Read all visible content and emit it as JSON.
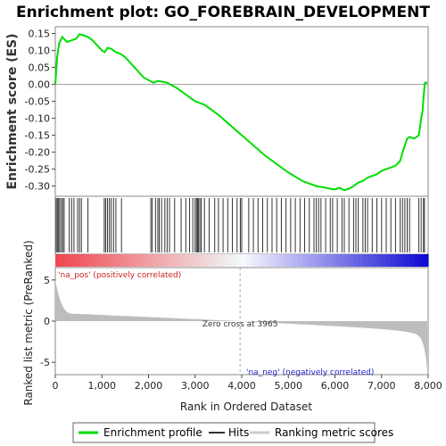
{
  "chart_data": {
    "type": "line",
    "title": "Enrichment plot: GO_FOREBRAIN_DEVELOPMENT",
    "es_panel": {
      "ylabel": "Enrichment score (ES)",
      "ylim": [
        -0.33,
        0.17
      ],
      "yticks": [
        0.15,
        0.1,
        0.05,
        0.0,
        -0.05,
        -0.1,
        -0.15,
        -0.2,
        -0.25,
        -0.3
      ],
      "ytick_labels": [
        "0.15",
        "0.10",
        "0.05",
        "0.00",
        "-0.05",
        "-0.10",
        "-0.15",
        "-0.20",
        "-0.25",
        "-0.30"
      ],
      "series": [
        {
          "name": "Enrichment profile",
          "color": "#00dd00",
          "x": [
            0,
            40,
            80,
            150,
            250,
            350,
            450,
            520,
            600,
            700,
            800,
            900,
            1000,
            1060,
            1120,
            1200,
            1300,
            1400,
            1500,
            1700,
            1900,
            2100,
            2200,
            2300,
            2400,
            2600,
            2800,
            3000,
            3200,
            3500,
            4000,
            4500,
            5000,
            5300,
            5600,
            5800,
            5900,
            6000,
            6100,
            6200,
            6300,
            6400,
            6500,
            6600,
            6700,
            6800,
            6900,
            7000,
            7100,
            7200,
            7300,
            7400,
            7450,
            7500,
            7550,
            7600,
            7700,
            7800,
            7850,
            7880,
            7900,
            7930,
            7980
          ],
          "y": [
            0.0,
            0.08,
            0.12,
            0.14,
            0.125,
            0.13,
            0.135,
            0.148,
            0.145,
            0.14,
            0.13,
            0.115,
            0.1,
            0.095,
            0.108,
            0.105,
            0.095,
            0.09,
            0.08,
            0.05,
            0.02,
            0.005,
            0.01,
            0.008,
            0.005,
            -0.01,
            -0.03,
            -0.05,
            -0.06,
            -0.09,
            -0.15,
            -0.21,
            -0.26,
            -0.285,
            -0.3,
            -0.305,
            -0.308,
            -0.31,
            -0.305,
            -0.312,
            -0.308,
            -0.3,
            -0.29,
            -0.285,
            -0.275,
            -0.27,
            -0.265,
            -0.255,
            -0.25,
            -0.245,
            -0.24,
            -0.225,
            -0.2,
            -0.18,
            -0.16,
            -0.155,
            -0.16,
            -0.15,
            -0.1,
            -0.08,
            -0.04,
            0.005,
            0.005
          ]
        }
      ]
    },
    "hits": [
      20,
      45,
      70,
      95,
      130,
      160,
      190,
      300,
      350,
      400,
      480,
      520,
      560,
      700,
      1050,
      1080,
      1120,
      1160,
      1200,
      1250,
      1300,
      1420,
      2050,
      2080,
      2150,
      2200,
      2230,
      2280,
      2350,
      2400,
      2450,
      2560,
      2700,
      2800,
      2880,
      2950,
      3000,
      3030,
      3050,
      3070,
      3100,
      3130,
      3200,
      3300,
      3420,
      3500,
      3600,
      3700,
      3800,
      3900,
      3970,
      4000,
      4150,
      4250,
      4350,
      4450,
      4550,
      4650,
      4750,
      4850,
      4950,
      5050,
      5150,
      5250,
      5350,
      5450,
      5550,
      5600,
      5650,
      5700,
      5800,
      5900,
      5950,
      6050,
      6150,
      6200,
      6300,
      6400,
      6450,
      6500,
      6600,
      6650,
      6700,
      6800,
      6900,
      7000,
      7100,
      7200,
      7300,
      7400,
      7450,
      7500,
      7550,
      7600,
      7800,
      7850,
      7900,
      7920
    ],
    "ranked_panel": {
      "ylabel": "Ranked list metric (PreRanked)",
      "ylim": [
        -6.5,
        6.5
      ],
      "yticks": [
        5,
        0,
        -5
      ],
      "ytick_labels": [
        "5",
        "0",
        "-5"
      ],
      "zero_cross": 3965,
      "zero_cross_label": "Zero cross at 3965",
      "pos_label": "'na_pos' (positively correlated)",
      "neg_label": "'na_neg' (negatively correlated)",
      "fill_color": "#bdbdbd"
    },
    "xlabel": "Rank in Ordered Dataset",
    "xlim": [
      0,
      8000
    ],
    "xticks": [
      0,
      1000,
      2000,
      3000,
      4000,
      5000,
      6000,
      7000,
      8000
    ],
    "xtick_labels": [
      "0",
      "1,000",
      "2,000",
      "3,000",
      "4,000",
      "5,000",
      "6,000",
      "7,000",
      "8,000"
    ],
    "n_genes": 7980,
    "legend": {
      "placement": "bottom",
      "items": [
        {
          "label": "Enrichment profile",
          "color": "#00dd00"
        },
        {
          "label": "Hits",
          "color": "#333333"
        },
        {
          "label": "Ranking metric scores",
          "color": "#cccccc"
        }
      ]
    }
  }
}
